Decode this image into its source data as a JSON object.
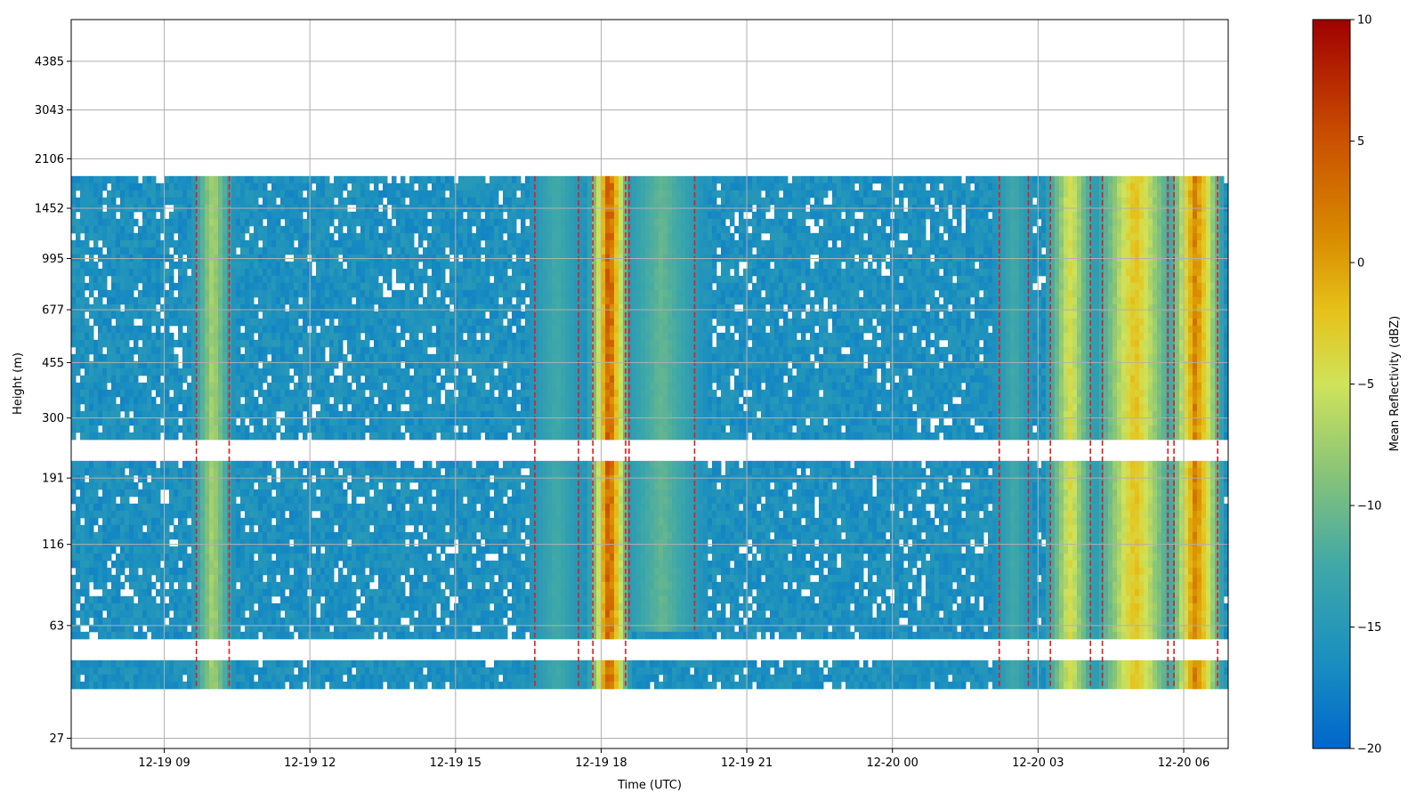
{
  "chart_data": {
    "type": "heatmap",
    "title": "",
    "xlabel": "Time (UTC)",
    "ylabel": "Height (m)",
    "x_range": [
      "2012-12-19 07:05",
      "2012-12-20 06:55"
    ],
    "x_ticks": [
      "2012-12-19 09:00",
      "2012-12-19 12:00",
      "2012-12-19 15:00",
      "2012-12-19 18:00",
      "2012-12-19 21:00",
      "2012-12-20 00:00",
      "2012-12-20 03:00",
      "2012-12-20 06:00"
    ],
    "x_tick_labels": [
      "12-19 09",
      "12-19 12",
      "12-19 15",
      "12-19 18",
      "12-19 21",
      "12-20 00",
      "12-20 03",
      "12-20 06"
    ],
    "y_scale": "log",
    "y_range": [
      25,
      6000
    ],
    "y_ticks": [
      27,
      63,
      116,
      191,
      300,
      455,
      677,
      995,
      1452,
      2106,
      3043,
      4385
    ],
    "grid": true,
    "colorbar": {
      "label": "Mean Reflectivity (dBZ)",
      "range": [
        -20,
        10
      ],
      "ticks": [
        -20,
        -15,
        -10,
        -5,
        0,
        5,
        10
      ],
      "colormap": [
        "#0066cc",
        "#1a8fc0",
        "#3fa8a8",
        "#84c27a",
        "#cfe35a",
        "#e6c21a",
        "#d98c00",
        "#c84a00",
        "#a00000"
      ]
    },
    "contour_color": "#e41a1c",
    "background_level_dbz": -16,
    "level_gaps_m": [
      [
        217,
        250
      ],
      [
        48,
        58
      ]
    ],
    "intense_columns": [
      {
        "time": "2012-12-19 10:00",
        "width_h": 0.45,
        "peak_dbz": -6,
        "top_m": 1850,
        "bottom_m": 40
      },
      {
        "time": "2012-12-19 17:05",
        "width_h": 0.6,
        "peak_dbz": -12,
        "top_m": 1850,
        "bottom_m": 40
      },
      {
        "time": "2012-12-19 18:10",
        "width_h": 0.45,
        "peak_dbz": 8,
        "top_m": 1850,
        "bottom_m": 40
      },
      {
        "time": "2012-12-19 19:15",
        "width_h": 0.9,
        "peak_dbz": -10,
        "top_m": 1850,
        "bottom_m": 60
      },
      {
        "time": "2012-12-20 02:30",
        "width_h": 0.4,
        "peak_dbz": -12,
        "top_m": 1850,
        "bottom_m": 40
      },
      {
        "time": "2012-12-20 03:40",
        "width_h": 0.55,
        "peak_dbz": -3,
        "top_m": 1850,
        "bottom_m": 40
      },
      {
        "time": "2012-12-20 05:00",
        "width_h": 0.9,
        "peak_dbz": 0,
        "top_m": 1850,
        "bottom_m": 40
      },
      {
        "time": "2012-12-20 06:15",
        "width_h": 0.6,
        "peak_dbz": 5,
        "top_m": 1850,
        "bottom_m": 40
      }
    ]
  }
}
